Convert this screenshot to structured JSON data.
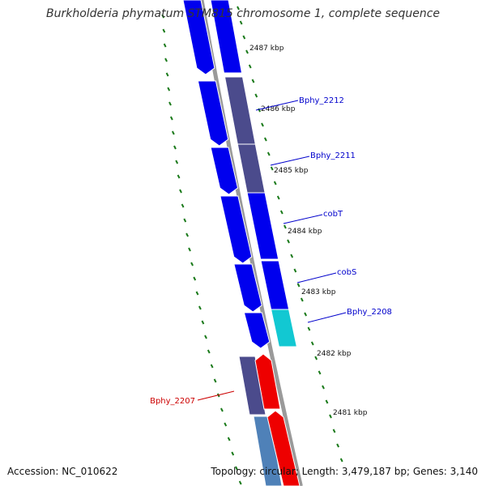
{
  "title": "Burkholderia phymatum STM815 chromosome 1, complete sequence",
  "footer": {
    "accession_label": "Accession:",
    "accession": "NC_010622",
    "summary": "Topology: circular; Length: 3,479,187 bp; Genes: 3,140"
  },
  "colors": {
    "gene_blue": "#0000ee",
    "gene_purple": "#4b4b8c",
    "gene_cyan": "#12c8d2",
    "gene_red": "#ee0000",
    "gene_steel": "#4f81b8",
    "backbone": "#8a8a8a",
    "ticks": "#1a7a1a",
    "label_blue": "#0000cc",
    "label_red": "#cc0000"
  },
  "scale_labels": [
    "2487 kbp",
    "2486 kbp",
    "2485 kbp",
    "2484 kbp",
    "2483 kbp",
    "2482 kbp",
    "2481 kbp"
  ],
  "gene_labels": [
    {
      "name": "Bphy_2212",
      "color": "blue"
    },
    {
      "name": "Bphy_2211",
      "color": "blue"
    },
    {
      "name": "cobT",
      "color": "blue"
    },
    {
      "name": "cobS",
      "color": "blue"
    },
    {
      "name": "Bphy_2208",
      "color": "blue"
    },
    {
      "name": "Bphy_2207",
      "color": "red"
    }
  ]
}
